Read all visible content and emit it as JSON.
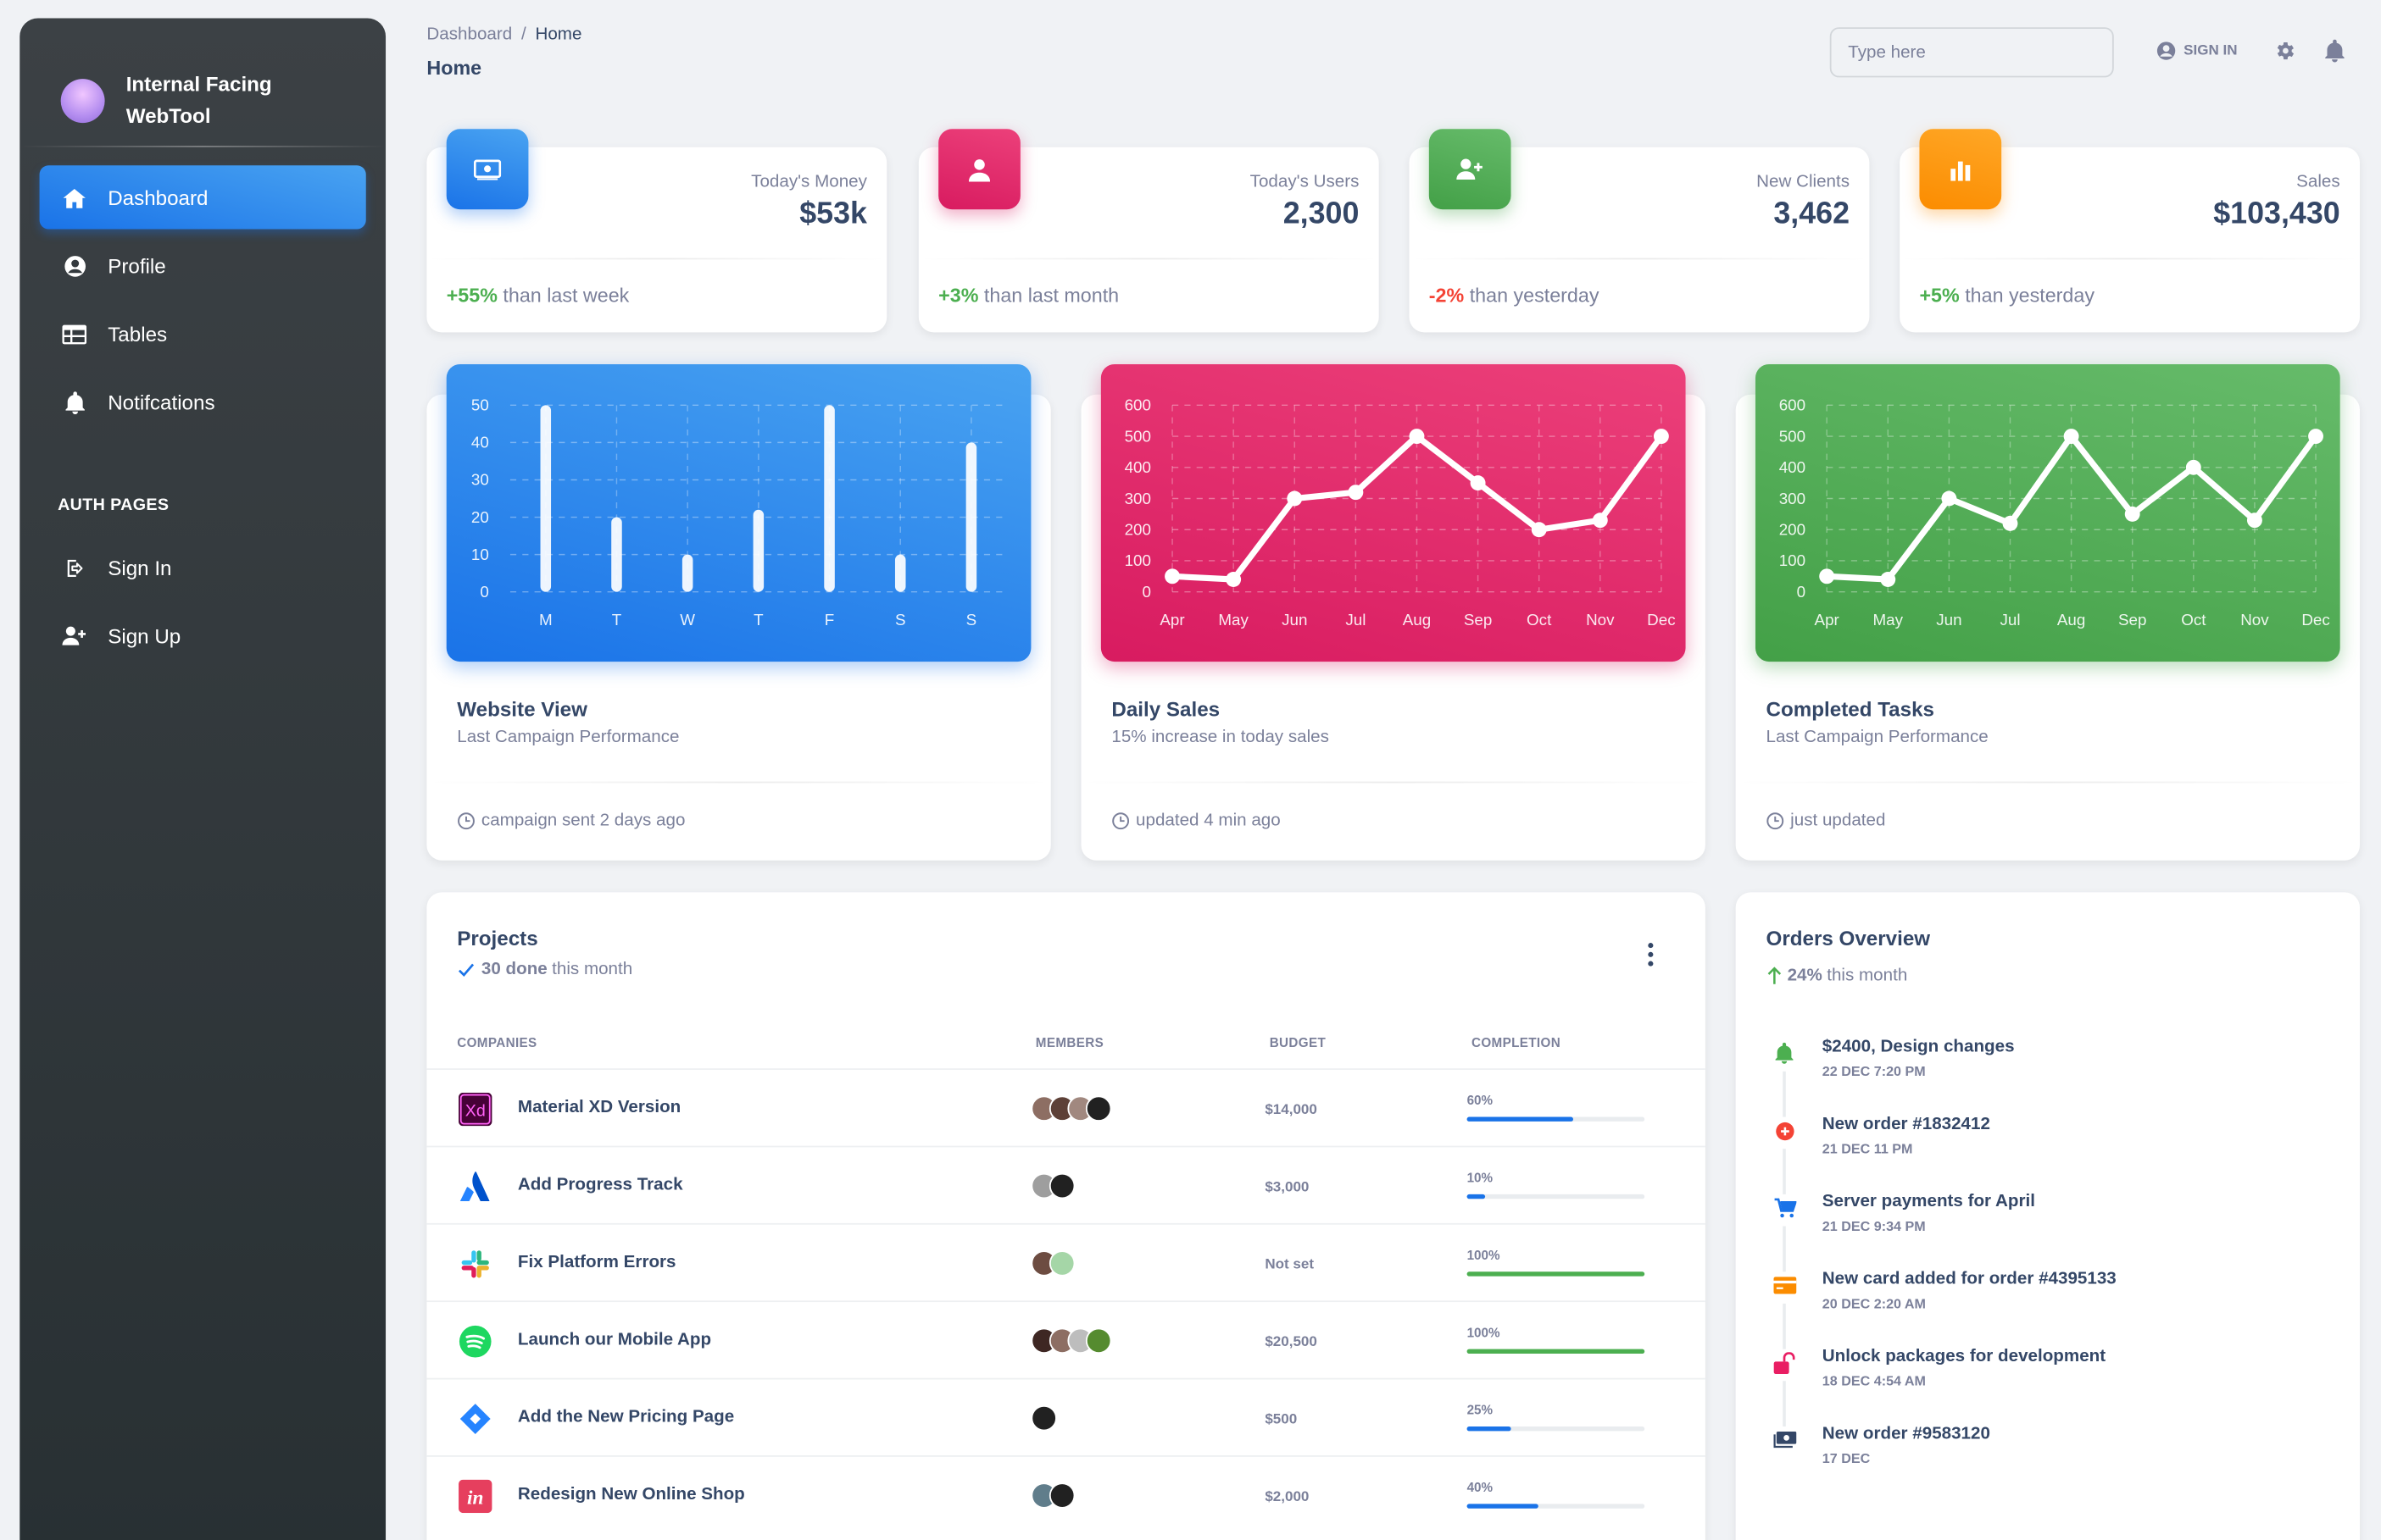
{
  "brand": {
    "name": "Internal Facing WebTool"
  },
  "sidebar": {
    "items": [
      {
        "label": "Dashboard",
        "icon": "home-icon",
        "active": true
      },
      {
        "label": "Profile",
        "icon": "user-circle-icon"
      },
      {
        "label": "Tables",
        "icon": "table-icon"
      },
      {
        "label": "Notifcations",
        "icon": "bell-icon"
      }
    ],
    "section_label": "AUTH PAGES",
    "auth_items": [
      {
        "label": "Sign In",
        "icon": "sign-in-icon"
      },
      {
        "label": "Sign Up",
        "icon": "user-plus-icon"
      }
    ]
  },
  "header": {
    "breadcrumb": [
      "Dashboard",
      "Home"
    ],
    "breadcrumb_sep": "/",
    "title": "Home",
    "search_placeholder": "Type here",
    "signin_label": "SIGN IN"
  },
  "stats": [
    {
      "label": "Today's Money",
      "value": "$53k",
      "change": "+55%",
      "change_text": " than last week",
      "trend": "up",
      "icon": "money-icon",
      "color": "#1A73E8"
    },
    {
      "label": "Today's Users",
      "value": "2,300",
      "change": "+3%",
      "change_text": " than last month",
      "trend": "up",
      "icon": "person-icon",
      "color": "#D81B60"
    },
    {
      "label": "New Clients",
      "value": "3,462",
      "change": "-2%",
      "change_text": " than yesterday",
      "trend": "down",
      "icon": "person-add-icon",
      "color": "#43A047"
    },
    {
      "label": "Sales",
      "value": "$103,430",
      "change": "+5%",
      "change_text": " than yesterday",
      "trend": "up",
      "icon": "bar-chart-icon",
      "color": "#FB8C00"
    }
  ],
  "chart_data": [
    {
      "type": "bar",
      "title": "Website View",
      "subtitle": "Last Campaign Performance",
      "footer": "campaign sent 2 days ago",
      "categories": [
        "M",
        "T",
        "W",
        "T",
        "F",
        "S",
        "S"
      ],
      "values": [
        50,
        20,
        10,
        22,
        50,
        10,
        40
      ],
      "ylim": [
        0,
        50
      ],
      "yticks": [
        0,
        10,
        20,
        30,
        40,
        50
      ],
      "grid": true,
      "color": "#1A73E8"
    },
    {
      "type": "line",
      "title": "Daily Sales",
      "subtitle": "15% increase in today sales",
      "footer": "updated 4 min ago",
      "categories": [
        "Apr",
        "May",
        "Jun",
        "Jul",
        "Aug",
        "Sep",
        "Oct",
        "Nov",
        "Dec"
      ],
      "values": [
        50,
        40,
        300,
        320,
        500,
        350,
        200,
        230,
        500
      ],
      "ylim": [
        0,
        600
      ],
      "yticks": [
        0,
        100,
        200,
        300,
        400,
        500,
        600
      ],
      "grid": true,
      "color": "#D81B60"
    },
    {
      "type": "line",
      "title": "Completed Tasks",
      "subtitle": "Last Campaign Performance",
      "footer": "just updated",
      "categories": [
        "Apr",
        "May",
        "Jun",
        "Jul",
        "Aug",
        "Sep",
        "Oct",
        "Nov",
        "Dec"
      ],
      "values": [
        50,
        40,
        300,
        220,
        500,
        250,
        400,
        230,
        500
      ],
      "ylim": [
        0,
        600
      ],
      "yticks": [
        0,
        100,
        200,
        300,
        400,
        500,
        600
      ],
      "grid": true,
      "color": "#43A047"
    }
  ],
  "projects": {
    "title": "Projects",
    "done_count": "30 done",
    "done_text": "this month",
    "columns": [
      "COMPANIES",
      "MEMBERS",
      "BUDGET",
      "COMPLETION"
    ],
    "rows": [
      {
        "name": "Material XD Version",
        "logo": "adobe-xd-logo",
        "members": 4,
        "budget": "$14,000",
        "completion": "60%",
        "progress": 60,
        "bar_color": "#1A73E8"
      },
      {
        "name": "Add Progress Track",
        "logo": "atlassian-logo",
        "members": 2,
        "budget": "$3,000",
        "completion": "10%",
        "progress": 10,
        "bar_color": "#1A73E8"
      },
      {
        "name": "Fix Platform Errors",
        "logo": "slack-logo",
        "members": 2,
        "budget": "Not set",
        "completion": "100%",
        "progress": 100,
        "bar_color": "#4CAF50"
      },
      {
        "name": "Launch our Mobile App",
        "logo": "spotify-logo",
        "members": 4,
        "budget": "$20,500",
        "completion": "100%",
        "progress": 100,
        "bar_color": "#4CAF50"
      },
      {
        "name": "Add the New Pricing Page",
        "logo": "jira-logo",
        "members": 1,
        "budget": "$500",
        "completion": "25%",
        "progress": 25,
        "bar_color": "#1A73E8"
      },
      {
        "name": "Redesign New Online Shop",
        "logo": "invision-logo",
        "members": 2,
        "budget": "$2,000",
        "completion": "40%",
        "progress": 40,
        "bar_color": "#1A73E8"
      }
    ]
  },
  "orders": {
    "title": "Orders Overview",
    "change": "24%",
    "change_text": "this month",
    "items": [
      {
        "title": "$2400, Design changes",
        "time": "22 DEC 7:20 PM",
        "icon": "bell-icon",
        "color": "#4CAF50"
      },
      {
        "title": "New order #1832412",
        "time": "21 DEC 11 PM",
        "icon": "add-circle-icon",
        "color": "#F44335"
      },
      {
        "title": "Server payments for April",
        "time": "21 DEC 9:34 PM",
        "icon": "cart-icon",
        "color": "#1A73E8"
      },
      {
        "title": "New card added for order #4395133",
        "time": "20 DEC 2:20 AM",
        "icon": "credit-card-icon",
        "color": "#FB8C00"
      },
      {
        "title": "Unlock packages for development",
        "time": "18 DEC 4:54 AM",
        "icon": "unlock-icon",
        "color": "#E91E63"
      },
      {
        "title": "New order #9583120",
        "time": "17 DEC",
        "icon": "payments-icon",
        "color": "#344767"
      }
    ]
  }
}
